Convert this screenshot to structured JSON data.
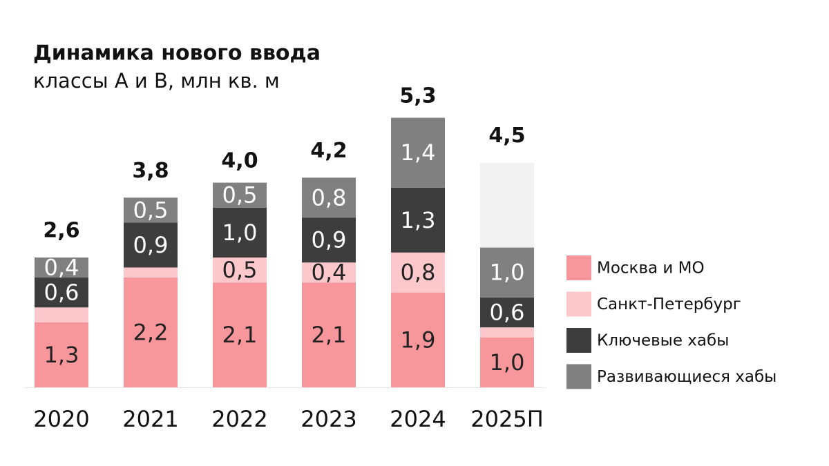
{
  "chart_data": {
    "type": "stacked-bar",
    "title": "Динамика нового ввода",
    "subtitle": "классы А и В, млн кв. м",
    "categories": [
      "2020",
      "2021",
      "2022",
      "2023",
      "2024",
      "2025П"
    ],
    "series": [
      {
        "name": "Москва и МО",
        "color": "#f7969b",
        "values": [
          1.3,
          2.2,
          2.1,
          2.1,
          1.9,
          1.0
        ],
        "value_labels": [
          "1,3",
          "2,2",
          "2,1",
          "2,1",
          "1,9",
          "1,0"
        ]
      },
      {
        "name": "Санкт-Петербург",
        "color": "#fdc8cb",
        "values": [
          0.3,
          0.2,
          0.5,
          0.4,
          0.8,
          0.2
        ],
        "value_labels": [
          null,
          null,
          "0,5",
          "0,4",
          "0,8",
          null
        ]
      },
      {
        "name": "Ключевые хабы",
        "color": "#3d3d3d",
        "values": [
          0.6,
          0.9,
          1.0,
          0.9,
          1.3,
          0.6
        ],
        "value_labels": [
          "0,6",
          "0,9",
          "1,0",
          "0,9",
          "1,3",
          "0,6"
        ]
      },
      {
        "name": "Развивающиеся хабы",
        "color": "#808080",
        "values": [
          0.4,
          0.5,
          0.5,
          0.8,
          1.4,
          1.0
        ],
        "value_labels": [
          "0,4",
          "0,5",
          "0,5",
          "0,8",
          "1,4",
          "1,0"
        ]
      },
      {
        "color": "#f2f2f2",
        "values": [
          null,
          null,
          null,
          null,
          null,
          1.7
        ]
      }
    ],
    "totals": [
      2.6,
      3.8,
      4.0,
      4.2,
      5.3,
      4.5
    ],
    "total_labels": [
      "2,6",
      "3,8",
      "4,0",
      "4,2",
      "5,3",
      "4,5"
    ],
    "ylim": [
      0,
      6
    ]
  }
}
